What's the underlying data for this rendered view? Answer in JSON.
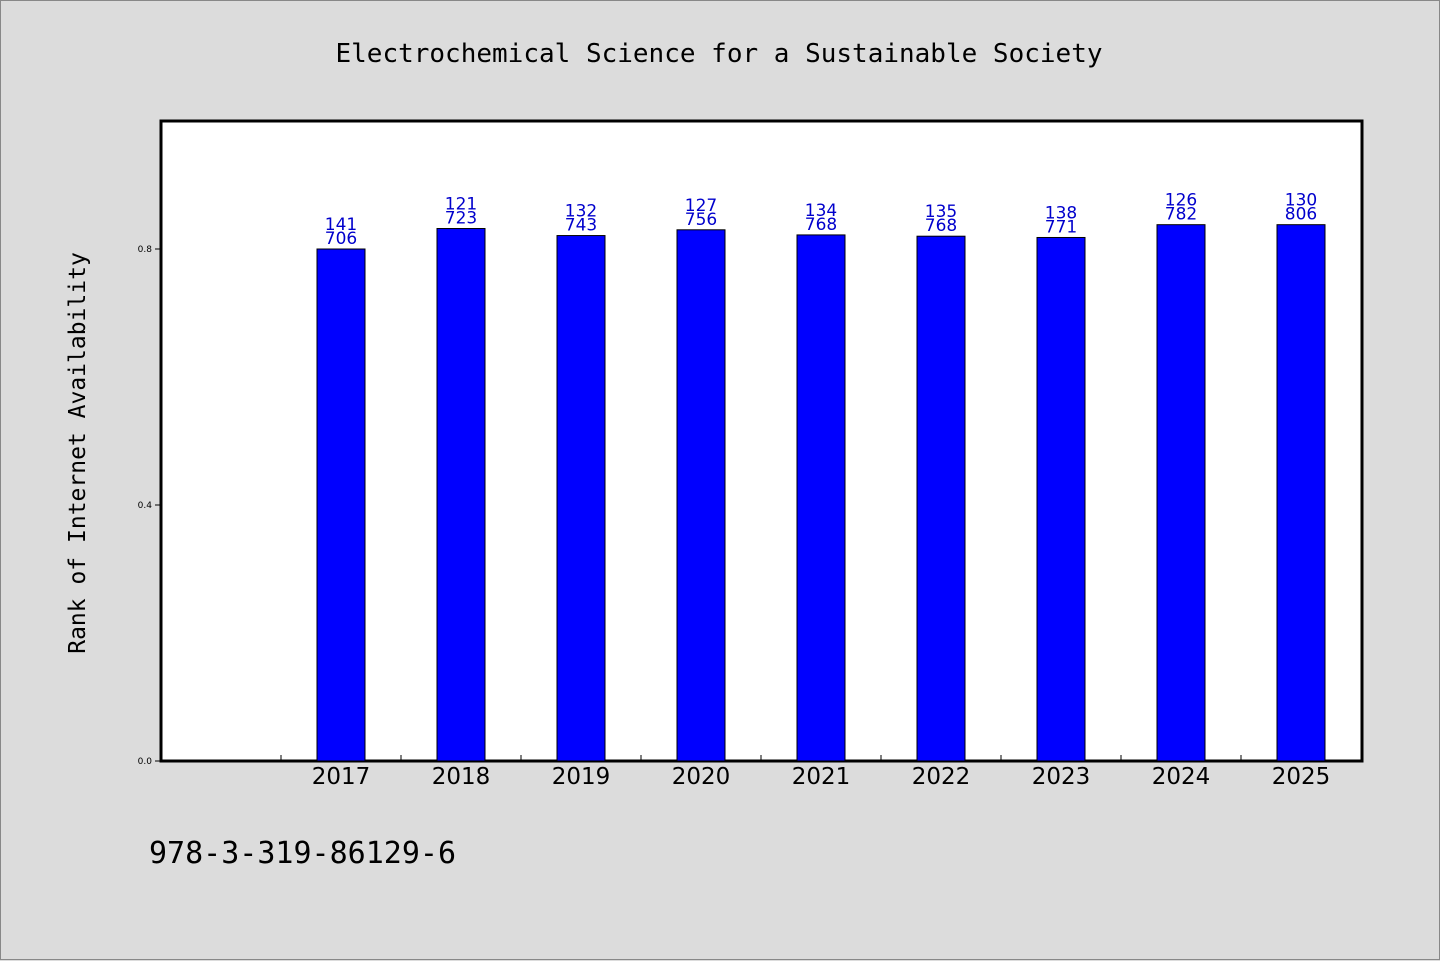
{
  "chart_data": {
    "type": "bar",
    "title": "Electrochemical Science for a Sustainable Society",
    "ylabel": "Rank of Internet Availability",
    "xlabel": "",
    "categories": [
      "2017",
      "2018",
      "2019",
      "2020",
      "2021",
      "2022",
      "2023",
      "2024",
      "2025"
    ],
    "values": [
      0.8,
      0.832,
      0.821,
      0.83,
      0.822,
      0.82,
      0.818,
      0.838,
      0.838
    ],
    "bar_labels": [
      [
        "141",
        "706"
      ],
      [
        "121",
        "723"
      ],
      [
        "132",
        "743"
      ],
      [
        "127",
        "756"
      ],
      [
        "134",
        "768"
      ],
      [
        "135",
        "768"
      ],
      [
        "138",
        "771"
      ],
      [
        "126",
        "782"
      ],
      [
        "130",
        "806"
      ]
    ],
    "yticks": [
      0.0,
      0.4,
      0.8
    ],
    "ytick_labels": [
      "0.0",
      "0.4",
      "0.8"
    ],
    "ylim": [
      0,
      1.0
    ],
    "grid": false,
    "bar_color": "#0000ff",
    "label_color": "#0000cc",
    "plot_background": "#ffffff",
    "page_background": "#dcdcdc"
  },
  "footer": {
    "isbn": "978-3-319-86129-6"
  }
}
